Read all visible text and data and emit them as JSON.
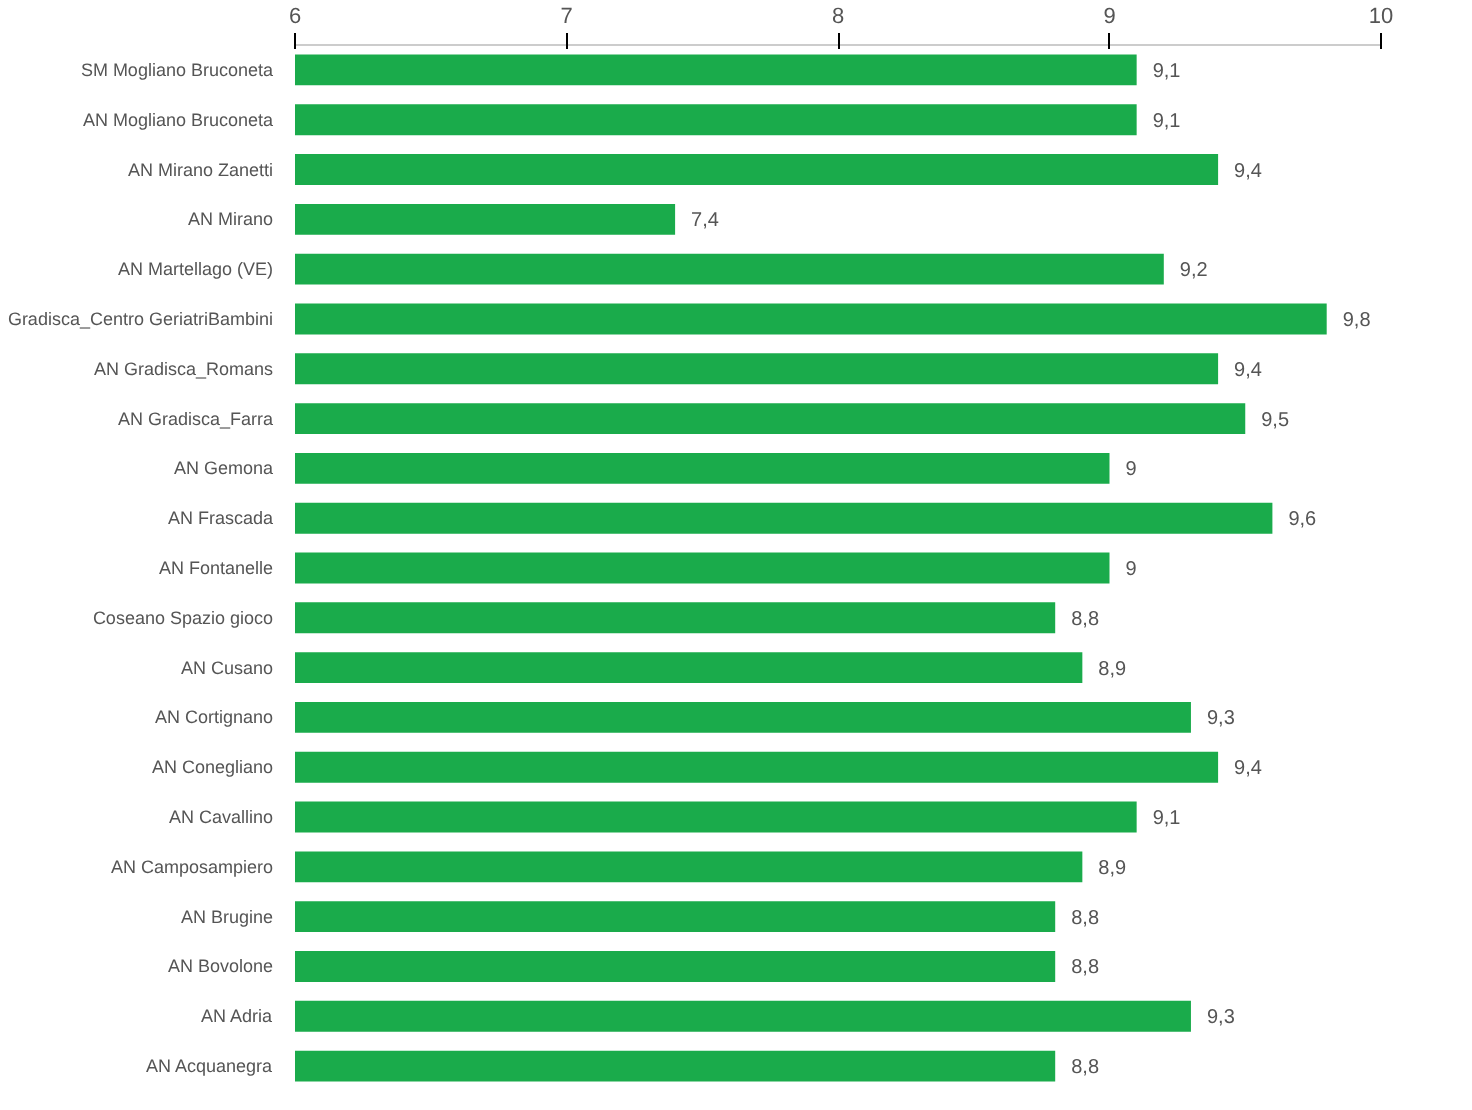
{
  "chart_data": {
    "type": "bar",
    "orientation": "horizontal",
    "categories": [
      "SM Mogliano Bruconeta",
      "AN Mogliano Bruconeta",
      "AN Mirano Zanetti",
      "AN Mirano",
      "AN Martellago (VE)",
      "Gradisca_Centro GeriatriBambini",
      "AN Gradisca_Romans",
      "AN Gradisca_Farra",
      "AN Gemona",
      "AN Frascada",
      "AN Fontanelle",
      "Coseano Spazio gioco",
      "AN Cusano",
      "AN Cortignano",
      "AN Conegliano",
      "AN Cavallino",
      "AN Camposampiero",
      "AN Brugine",
      "AN Bovolone",
      "AN Adria",
      "AN Acquanegra"
    ],
    "values": [
      9.1,
      9.1,
      9.4,
      7.4,
      9.2,
      9.8,
      9.4,
      9.5,
      9,
      9.6,
      9,
      8.8,
      8.9,
      9.3,
      9.4,
      9.1,
      8.9,
      8.8,
      8.8,
      9.3,
      8.8
    ],
    "value_labels": [
      "9,1",
      "9,1",
      "9,4",
      "7,4",
      "9,2",
      "9,8",
      "9,4",
      "9,5",
      "9",
      "9,6",
      "9",
      "8,8",
      "8,9",
      "9,3",
      "9,4",
      "9,1",
      "8,9",
      "8,8",
      "8,8",
      "9,3",
      "8,8"
    ],
    "color": "#1aab4b",
    "xlim": [
      6,
      10
    ],
    "xticks": [
      6,
      7,
      8,
      9,
      10
    ],
    "grid": false
  }
}
